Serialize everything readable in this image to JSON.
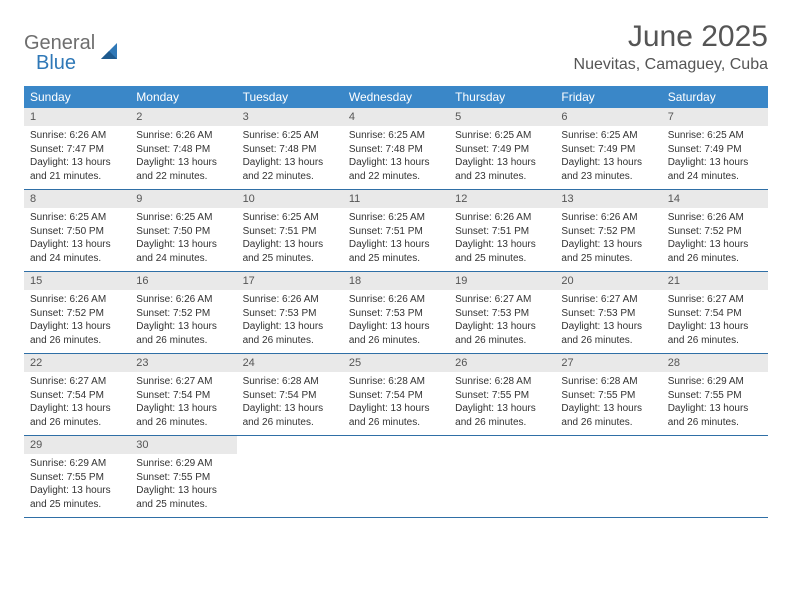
{
  "logo": {
    "topText": "General",
    "bottomText": "Blue"
  },
  "title": "June 2025",
  "location": "Nuevitas, Camaguey, Cuba",
  "colors": {
    "headerBar": "#3a87c8",
    "weekBorder": "#2f6fa6",
    "dayNumBg": "#e9e9e9",
    "logoGray": "#6e6e6e",
    "logoBlue": "#2f78b7",
    "titleGray": "#555555"
  },
  "weekdays": [
    "Sunday",
    "Monday",
    "Tuesday",
    "Wednesday",
    "Thursday",
    "Friday",
    "Saturday"
  ],
  "weeks": [
    [
      {
        "n": "1",
        "sunrise": "6:26 AM",
        "sunset": "7:47 PM",
        "dlH": "13",
        "dlM": "21"
      },
      {
        "n": "2",
        "sunrise": "6:26 AM",
        "sunset": "7:48 PM",
        "dlH": "13",
        "dlM": "22"
      },
      {
        "n": "3",
        "sunrise": "6:25 AM",
        "sunset": "7:48 PM",
        "dlH": "13",
        "dlM": "22"
      },
      {
        "n": "4",
        "sunrise": "6:25 AM",
        "sunset": "7:48 PM",
        "dlH": "13",
        "dlM": "22"
      },
      {
        "n": "5",
        "sunrise": "6:25 AM",
        "sunset": "7:49 PM",
        "dlH": "13",
        "dlM": "23"
      },
      {
        "n": "6",
        "sunrise": "6:25 AM",
        "sunset": "7:49 PM",
        "dlH": "13",
        "dlM": "23"
      },
      {
        "n": "7",
        "sunrise": "6:25 AM",
        "sunset": "7:49 PM",
        "dlH": "13",
        "dlM": "24"
      }
    ],
    [
      {
        "n": "8",
        "sunrise": "6:25 AM",
        "sunset": "7:50 PM",
        "dlH": "13",
        "dlM": "24"
      },
      {
        "n": "9",
        "sunrise": "6:25 AM",
        "sunset": "7:50 PM",
        "dlH": "13",
        "dlM": "24"
      },
      {
        "n": "10",
        "sunrise": "6:25 AM",
        "sunset": "7:51 PM",
        "dlH": "13",
        "dlM": "25"
      },
      {
        "n": "11",
        "sunrise": "6:25 AM",
        "sunset": "7:51 PM",
        "dlH": "13",
        "dlM": "25"
      },
      {
        "n": "12",
        "sunrise": "6:26 AM",
        "sunset": "7:51 PM",
        "dlH": "13",
        "dlM": "25"
      },
      {
        "n": "13",
        "sunrise": "6:26 AM",
        "sunset": "7:52 PM",
        "dlH": "13",
        "dlM": "25"
      },
      {
        "n": "14",
        "sunrise": "6:26 AM",
        "sunset": "7:52 PM",
        "dlH": "13",
        "dlM": "26"
      }
    ],
    [
      {
        "n": "15",
        "sunrise": "6:26 AM",
        "sunset": "7:52 PM",
        "dlH": "13",
        "dlM": "26"
      },
      {
        "n": "16",
        "sunrise": "6:26 AM",
        "sunset": "7:52 PM",
        "dlH": "13",
        "dlM": "26"
      },
      {
        "n": "17",
        "sunrise": "6:26 AM",
        "sunset": "7:53 PM",
        "dlH": "13",
        "dlM": "26"
      },
      {
        "n": "18",
        "sunrise": "6:26 AM",
        "sunset": "7:53 PM",
        "dlH": "13",
        "dlM": "26"
      },
      {
        "n": "19",
        "sunrise": "6:27 AM",
        "sunset": "7:53 PM",
        "dlH": "13",
        "dlM": "26"
      },
      {
        "n": "20",
        "sunrise": "6:27 AM",
        "sunset": "7:53 PM",
        "dlH": "13",
        "dlM": "26"
      },
      {
        "n": "21",
        "sunrise": "6:27 AM",
        "sunset": "7:54 PM",
        "dlH": "13",
        "dlM": "26"
      }
    ],
    [
      {
        "n": "22",
        "sunrise": "6:27 AM",
        "sunset": "7:54 PM",
        "dlH": "13",
        "dlM": "26"
      },
      {
        "n": "23",
        "sunrise": "6:27 AM",
        "sunset": "7:54 PM",
        "dlH": "13",
        "dlM": "26"
      },
      {
        "n": "24",
        "sunrise": "6:28 AM",
        "sunset": "7:54 PM",
        "dlH": "13",
        "dlM": "26"
      },
      {
        "n": "25",
        "sunrise": "6:28 AM",
        "sunset": "7:54 PM",
        "dlH": "13",
        "dlM": "26"
      },
      {
        "n": "26",
        "sunrise": "6:28 AM",
        "sunset": "7:55 PM",
        "dlH": "13",
        "dlM": "26"
      },
      {
        "n": "27",
        "sunrise": "6:28 AM",
        "sunset": "7:55 PM",
        "dlH": "13",
        "dlM": "26"
      },
      {
        "n": "28",
        "sunrise": "6:29 AM",
        "sunset": "7:55 PM",
        "dlH": "13",
        "dlM": "26"
      }
    ],
    [
      {
        "n": "29",
        "sunrise": "6:29 AM",
        "sunset": "7:55 PM",
        "dlH": "13",
        "dlM": "25"
      },
      {
        "n": "30",
        "sunrise": "6:29 AM",
        "sunset": "7:55 PM",
        "dlH": "13",
        "dlM": "25"
      },
      null,
      null,
      null,
      null,
      null
    ]
  ]
}
